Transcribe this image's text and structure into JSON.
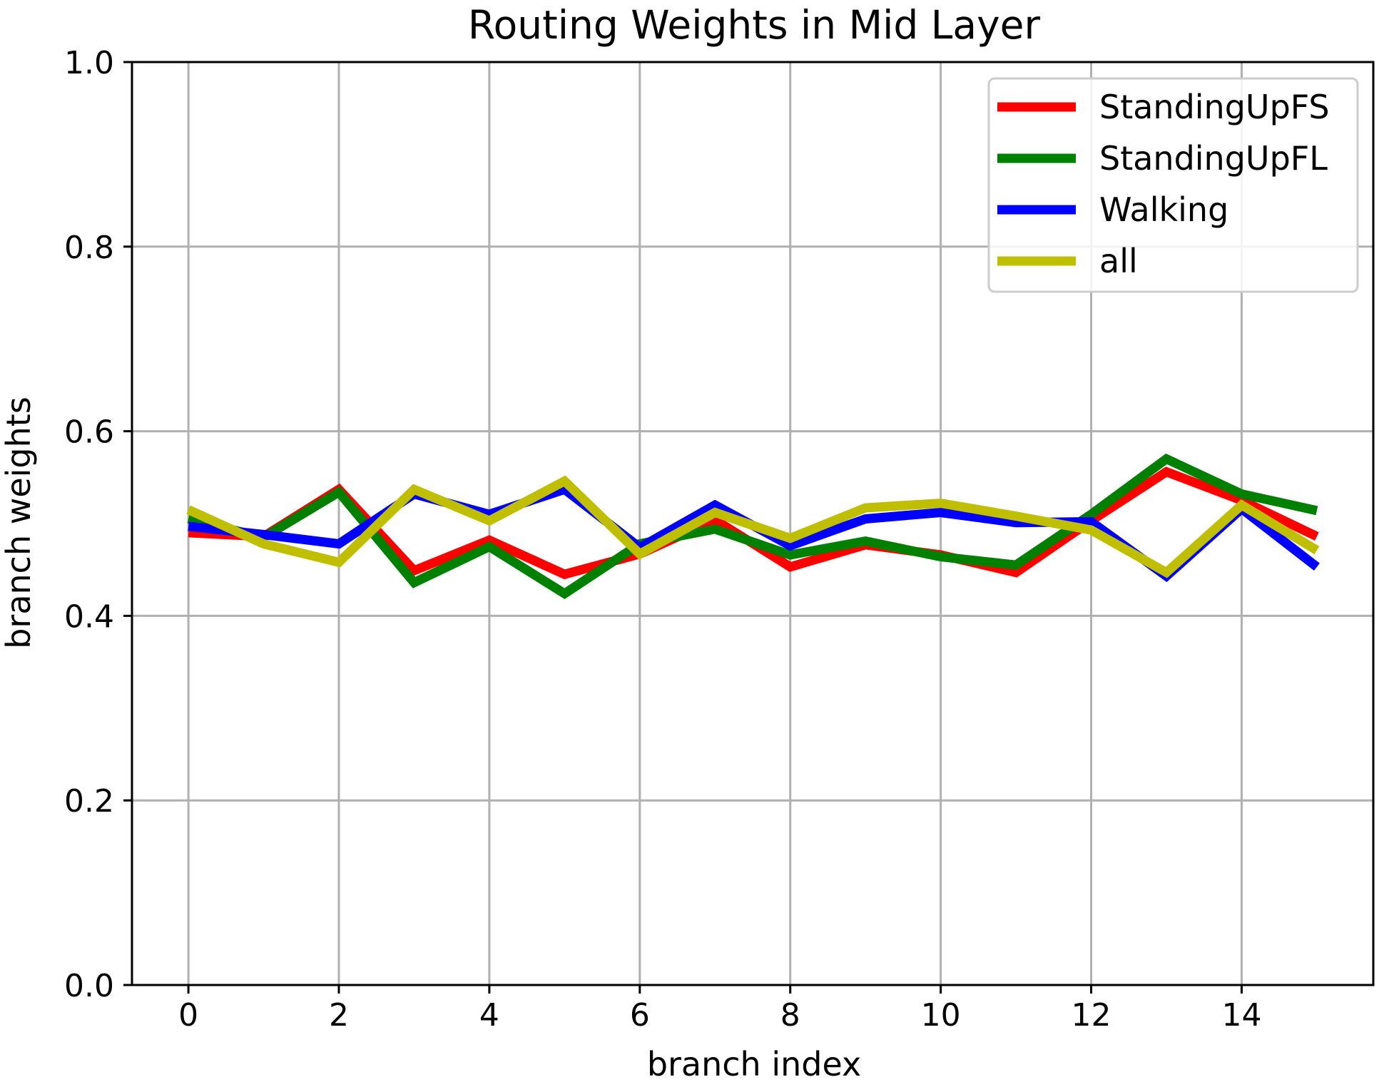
{
  "chart_data": {
    "type": "line",
    "title": "Routing Weights in Mid Layer",
    "xlabel": "branch index",
    "ylabel": "branch weights",
    "xlim": [
      -0.75,
      15.75
    ],
    "ylim": [
      0.0,
      1.0
    ],
    "xticks": [
      0,
      2,
      4,
      6,
      8,
      10,
      12,
      14
    ],
    "xtick_labels": [
      "0",
      "2",
      "4",
      "6",
      "8",
      "10",
      "12",
      "14"
    ],
    "yticks": [
      0.0,
      0.2,
      0.4,
      0.6,
      0.8,
      1.0
    ],
    "ytick_labels": [
      "0.0",
      "0.2",
      "0.4",
      "0.6",
      "0.8",
      "1.0"
    ],
    "grid": true,
    "legend_position": "top-right",
    "x": [
      0,
      1,
      2,
      3,
      4,
      5,
      6,
      7,
      8,
      9,
      10,
      11,
      12,
      13,
      14,
      15
    ],
    "series": [
      {
        "name": "StandingUpFS",
        "color": "#ff0000",
        "values": [
          0.49,
          0.486,
          0.537,
          0.449,
          0.482,
          0.445,
          0.467,
          0.504,
          0.453,
          0.477,
          0.466,
          0.447,
          0.503,
          0.556,
          0.525,
          0.486
        ]
      },
      {
        "name": "StandingUpFL",
        "color": "#008000",
        "values": [
          0.505,
          0.485,
          0.534,
          0.436,
          0.475,
          0.424,
          0.478,
          0.494,
          0.466,
          0.481,
          0.464,
          0.455,
          0.51,
          0.57,
          0.532,
          0.514
        ]
      },
      {
        "name": "Walking",
        "color": "#0000ff",
        "values": [
          0.497,
          0.488,
          0.478,
          0.532,
          0.51,
          0.537,
          0.474,
          0.52,
          0.476,
          0.505,
          0.512,
          0.501,
          0.502,
          0.443,
          0.516,
          0.453
        ]
      },
      {
        "name": "all",
        "color": "#bfbf00",
        "values": [
          0.515,
          0.478,
          0.458,
          0.537,
          0.503,
          0.546,
          0.467,
          0.512,
          0.484,
          0.517,
          0.522,
          0.508,
          0.493,
          0.447,
          0.52,
          0.471
        ]
      }
    ]
  }
}
